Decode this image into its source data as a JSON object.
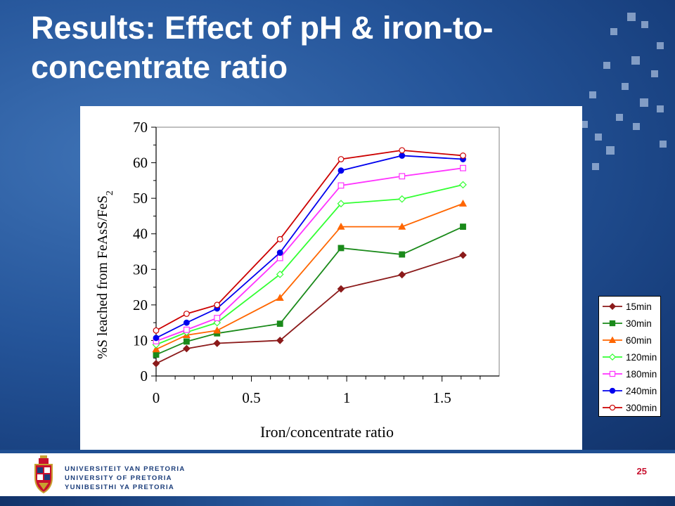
{
  "slide": {
    "title_line1": "Results: Effect of pH & iron-to-",
    "title_line2": "concentrate ratio",
    "page_number": "25"
  },
  "university": {
    "line1": "UNIVERSITEIT VAN PRETORIA",
    "line2": "UNIVERSITY OF PRETORIA",
    "line3": "YUNIBESITHI YA PRETORIA"
  },
  "colors": {
    "background_blue": "#25559a",
    "title_text": "#ffffff",
    "page_number": "#c8102e",
    "university_text": "#1b3d7a"
  },
  "chart_data": {
    "type": "line",
    "xlabel": "Iron/concentrate ratio",
    "ylabel": "%S leached from FeAsS/FeS",
    "ylabel_subscript": "2",
    "xlim": [
      0,
      1.8
    ],
    "ylim": [
      0,
      70
    ],
    "x_ticks": [
      "0",
      "0.5",
      "1",
      "1.5"
    ],
    "x_tick_values": [
      0,
      0.5,
      1,
      1.5
    ],
    "y_ticks": [
      "0",
      "10",
      "20",
      "30",
      "40",
      "50",
      "60",
      "70"
    ],
    "y_tick_values": [
      0,
      10,
      20,
      30,
      40,
      50,
      60,
      70
    ],
    "grid": false,
    "legend_position": "right",
    "x": [
      0,
      0.16,
      0.32,
      0.65,
      0.97,
      1.29,
      1.61
    ],
    "series": [
      {
        "name": "15min",
        "color": "#8b1a1a",
        "marker": "diamond-filled",
        "values": [
          3.5,
          7.7,
          9.2,
          10.0,
          24.5,
          28.5,
          34.0
        ]
      },
      {
        "name": "30min",
        "color": "#1a8a1a",
        "marker": "square-filled",
        "values": [
          6.0,
          9.7,
          12.0,
          14.7,
          36.0,
          34.2,
          42.0
        ]
      },
      {
        "name": "60min",
        "color": "#ff6600",
        "marker": "triangle-filled",
        "values": [
          7.5,
          11.5,
          12.8,
          22.0,
          42.0,
          42.0,
          48.5
        ]
      },
      {
        "name": "120min",
        "color": "#33ff33",
        "marker": "diamond-open",
        "values": [
          8.8,
          12.3,
          15.0,
          28.6,
          48.5,
          49.8,
          53.8
        ]
      },
      {
        "name": "180min",
        "color": "#ff33ff",
        "marker": "square-open",
        "values": [
          9.8,
          13.0,
          16.3,
          33.2,
          53.6,
          56.2,
          58.5
        ]
      },
      {
        "name": "240min",
        "color": "#0000ee",
        "marker": "circle-filled",
        "values": [
          10.7,
          15.0,
          19.0,
          34.7,
          57.8,
          62.0,
          61.0
        ]
      },
      {
        "name": "300min",
        "color": "#cc0000",
        "marker": "circle-open",
        "values": [
          12.8,
          17.5,
          20.0,
          38.5,
          61.0,
          63.5,
          62.0
        ]
      }
    ]
  }
}
